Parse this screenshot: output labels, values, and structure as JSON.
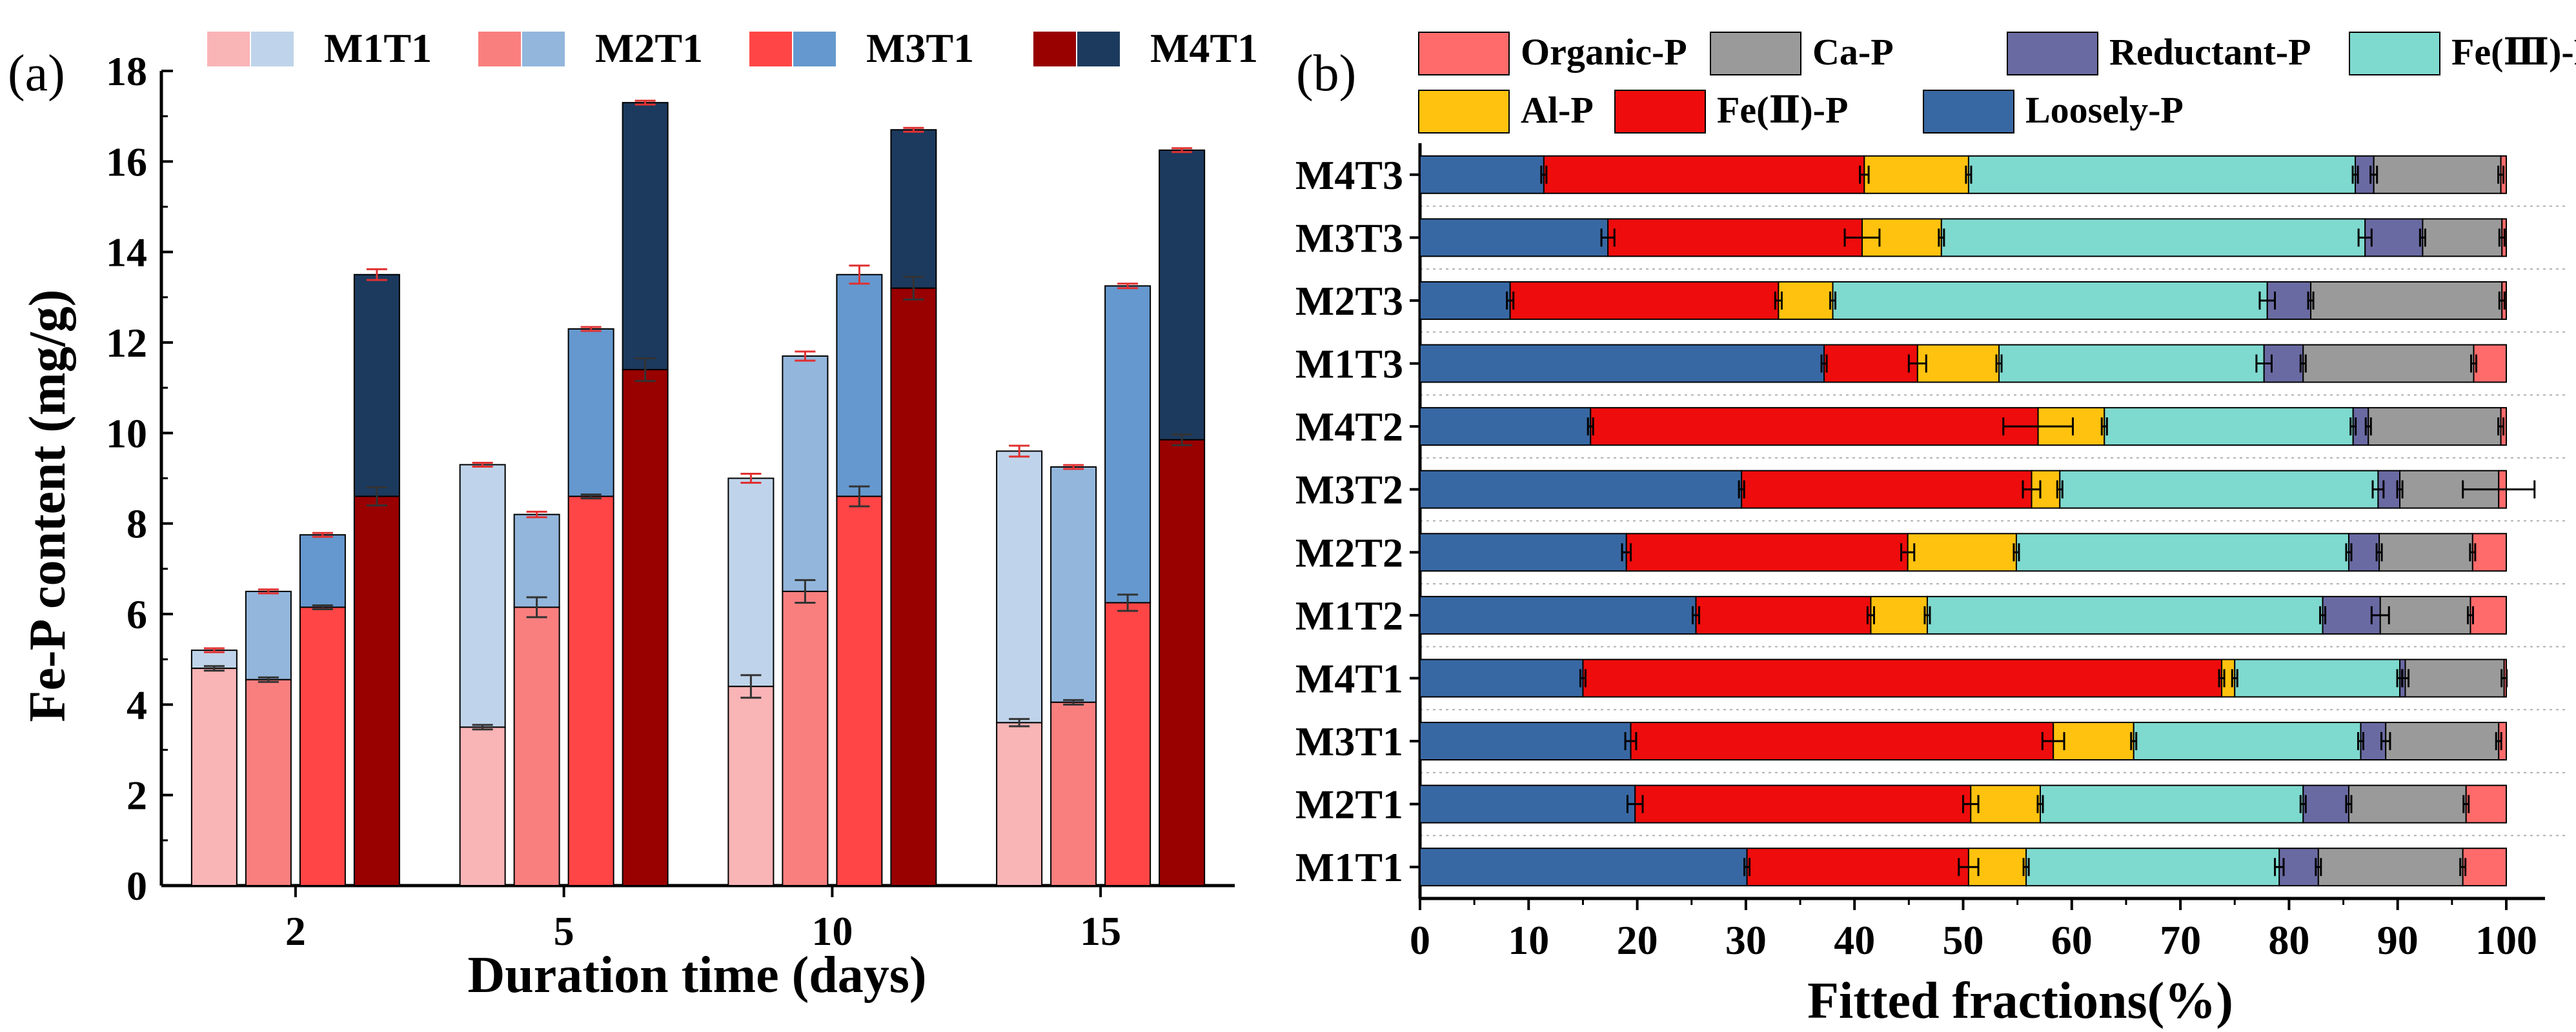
{
  "chart_data": [
    {
      "panel_label": "(a)",
      "type": "bar",
      "subtype": "stacked-grouped",
      "xlabel": "Duration time (days)",
      "ylabel": "Fe-P content (mg/g)",
      "ylim": [
        0,
        18
      ],
      "yticks": [
        0,
        2,
        4,
        6,
        8,
        10,
        12,
        14,
        16,
        18
      ],
      "categories": [
        "2",
        "5",
        "10",
        "15"
      ],
      "groups": [
        "M1T1",
        "M2T1",
        "M3T1",
        "M4T1"
      ],
      "legend": [
        {
          "label": "M1T1",
          "bottom_color": "#f9b4b6",
          "top_color": "#bfd4ea"
        },
        {
          "label": "M2T1",
          "bottom_color": "#f97f7f",
          "top_color": "#93b6dc"
        },
        {
          "label": "M3T1",
          "bottom_color": "#ff4545",
          "top_color": "#6598ce"
        },
        {
          "label": "M4T1",
          "bottom_color": "#990000",
          "top_color": "#1c3a5e"
        }
      ],
      "series": [
        {
          "name": "M1T1",
          "bottom": [
            4.8,
            3.5,
            4.4,
            3.6
          ],
          "total": [
            5.2,
            9.3,
            9.0,
            9.6
          ],
          "bottom_err": [
            0.05,
            0.05,
            0.25,
            0.08
          ],
          "total_err": [
            0.03,
            0.03,
            0.1,
            0.12
          ]
        },
        {
          "name": "M2T1",
          "bottom": [
            4.55,
            6.15,
            6.5,
            4.05
          ],
          "total": [
            6.5,
            8.2,
            11.7,
            9.25
          ],
          "bottom_err": [
            0.05,
            0.22,
            0.25,
            0.05
          ],
          "total_err": [
            0.03,
            0.06,
            0.1,
            0.03
          ]
        },
        {
          "name": "M3T1",
          "bottom": [
            6.15,
            8.6,
            8.6,
            6.25
          ],
          "total": [
            7.75,
            12.3,
            13.5,
            13.25
          ],
          "bottom_err": [
            0.03,
            0.03,
            0.22,
            0.18
          ],
          "total_err": [
            0.03,
            0.03,
            0.2,
            0.05
          ]
        },
        {
          "name": "M4T1",
          "bottom": [
            8.6,
            11.4,
            13.2,
            9.85
          ],
          "total": [
            13.5,
            17.3,
            16.7,
            16.25
          ],
          "bottom_err": [
            0.2,
            0.25,
            0.25,
            0.12
          ],
          "total_err": [
            0.12,
            0.03,
            0.03,
            0.03
          ]
        }
      ]
    },
    {
      "panel_label": "(b)",
      "type": "bar",
      "subtype": "horizontal-stacked-percent",
      "xlabel": "Fitted fractions(%)",
      "xlim": [
        0,
        100
      ],
      "xticks": [
        0,
        10,
        20,
        30,
        40,
        50,
        60,
        70,
        80,
        90,
        100
      ],
      "legend": [
        {
          "label": "Organic-P",
          "color": "#ff6b6b"
        },
        {
          "label": "Ca-P",
          "color": "#9a9a9a"
        },
        {
          "label": "Reductant-P",
          "color": "#6a6aa3"
        },
        {
          "label": "Fe(Ⅲ)-P",
          "color": "#7ed9cf"
        },
        {
          "label": "Al-P",
          "color": "#ffc20e"
        },
        {
          "label": "Fe(Ⅱ)-P",
          "color": "#ee0c0c"
        },
        {
          "label": "Loosely-P",
          "color": "#3868a3"
        }
      ],
      "stack_order": [
        "Loosely-P",
        "Fe(Ⅱ)-P",
        "Al-P",
        "Fe(Ⅲ)-P",
        "Reductant-P",
        "Ca-P",
        "Organic-P"
      ],
      "stack_colors": [
        "#3868a3",
        "#ee0c0c",
        "#ffc20e",
        "#7ed9cf",
        "#6a6aa3",
        "#9a9a9a",
        "#ff6b6b"
      ],
      "categories": [
        "M4T3",
        "M3T3",
        "M2T3",
        "M1T3",
        "M4T2",
        "M3T2",
        "M2T2",
        "M1T2",
        "M4T1",
        "M3T1",
        "M2T1",
        "M1T1"
      ],
      "cumulative": [
        [
          11.4,
          40.9,
          50.5,
          86.1,
          87.8,
          99.5,
          100
        ],
        [
          17.3,
          40.7,
          48.0,
          87.0,
          92.3,
          99.6,
          100
        ],
        [
          8.3,
          33.0,
          38.0,
          78.0,
          82.0,
          99.6,
          100
        ],
        [
          37.2,
          45.8,
          53.3,
          77.7,
          81.3,
          97.0,
          100
        ],
        [
          15.7,
          56.9,
          63.0,
          85.9,
          87.3,
          99.5,
          100
        ],
        [
          29.6,
          56.3,
          58.9,
          88.2,
          90.2,
          99.3,
          100
        ],
        [
          19.0,
          44.9,
          54.9,
          85.5,
          88.3,
          96.9,
          100
        ],
        [
          25.4,
          41.5,
          46.7,
          83.1,
          88.4,
          96.7,
          100
        ],
        [
          15.0,
          73.8,
          75.0,
          90.2,
          90.7,
          99.8,
          100
        ],
        [
          19.4,
          58.3,
          65.7,
          86.6,
          88.9,
          99.3,
          100
        ],
        [
          19.8,
          50.7,
          57.1,
          81.3,
          85.5,
          96.3,
          100
        ],
        [
          30.1,
          50.5,
          55.8,
          79.1,
          82.7,
          96.0,
          100
        ]
      ],
      "errors": [
        [
          0.2,
          0.4,
          0.2,
          0.2,
          0.3,
          0.2,
          0
        ],
        [
          0.6,
          1.6,
          0.2,
          0.6,
          0.2,
          0.2,
          0
        ],
        [
          0.3,
          0.3,
          0.2,
          0.7,
          0.2,
          0.2,
          0
        ],
        [
          0.2,
          0.8,
          0.2,
          0.7,
          0.2,
          0.2,
          0
        ],
        [
          0.2,
          3.2,
          0.2,
          0.2,
          0.2,
          0.2,
          0
        ],
        [
          0.2,
          0.8,
          0.2,
          0.5,
          0.2,
          3.3,
          0
        ],
        [
          0.4,
          0.6,
          0.2,
          0.2,
          0.2,
          0.2,
          0
        ],
        [
          0.3,
          0.3,
          0.2,
          0.2,
          0.8,
          0.2,
          0
        ],
        [
          0.2,
          0.2,
          0.2,
          0.2,
          0.3,
          0.2,
          0
        ],
        [
          0.5,
          1.0,
          0.2,
          0.2,
          0.4,
          0.2,
          0
        ],
        [
          0.7,
          0.7,
          0.2,
          0.2,
          0.2,
          0.2,
          0
        ],
        [
          0.2,
          0.9,
          0.2,
          0.4,
          0.2,
          0.2,
          0
        ]
      ]
    }
  ]
}
